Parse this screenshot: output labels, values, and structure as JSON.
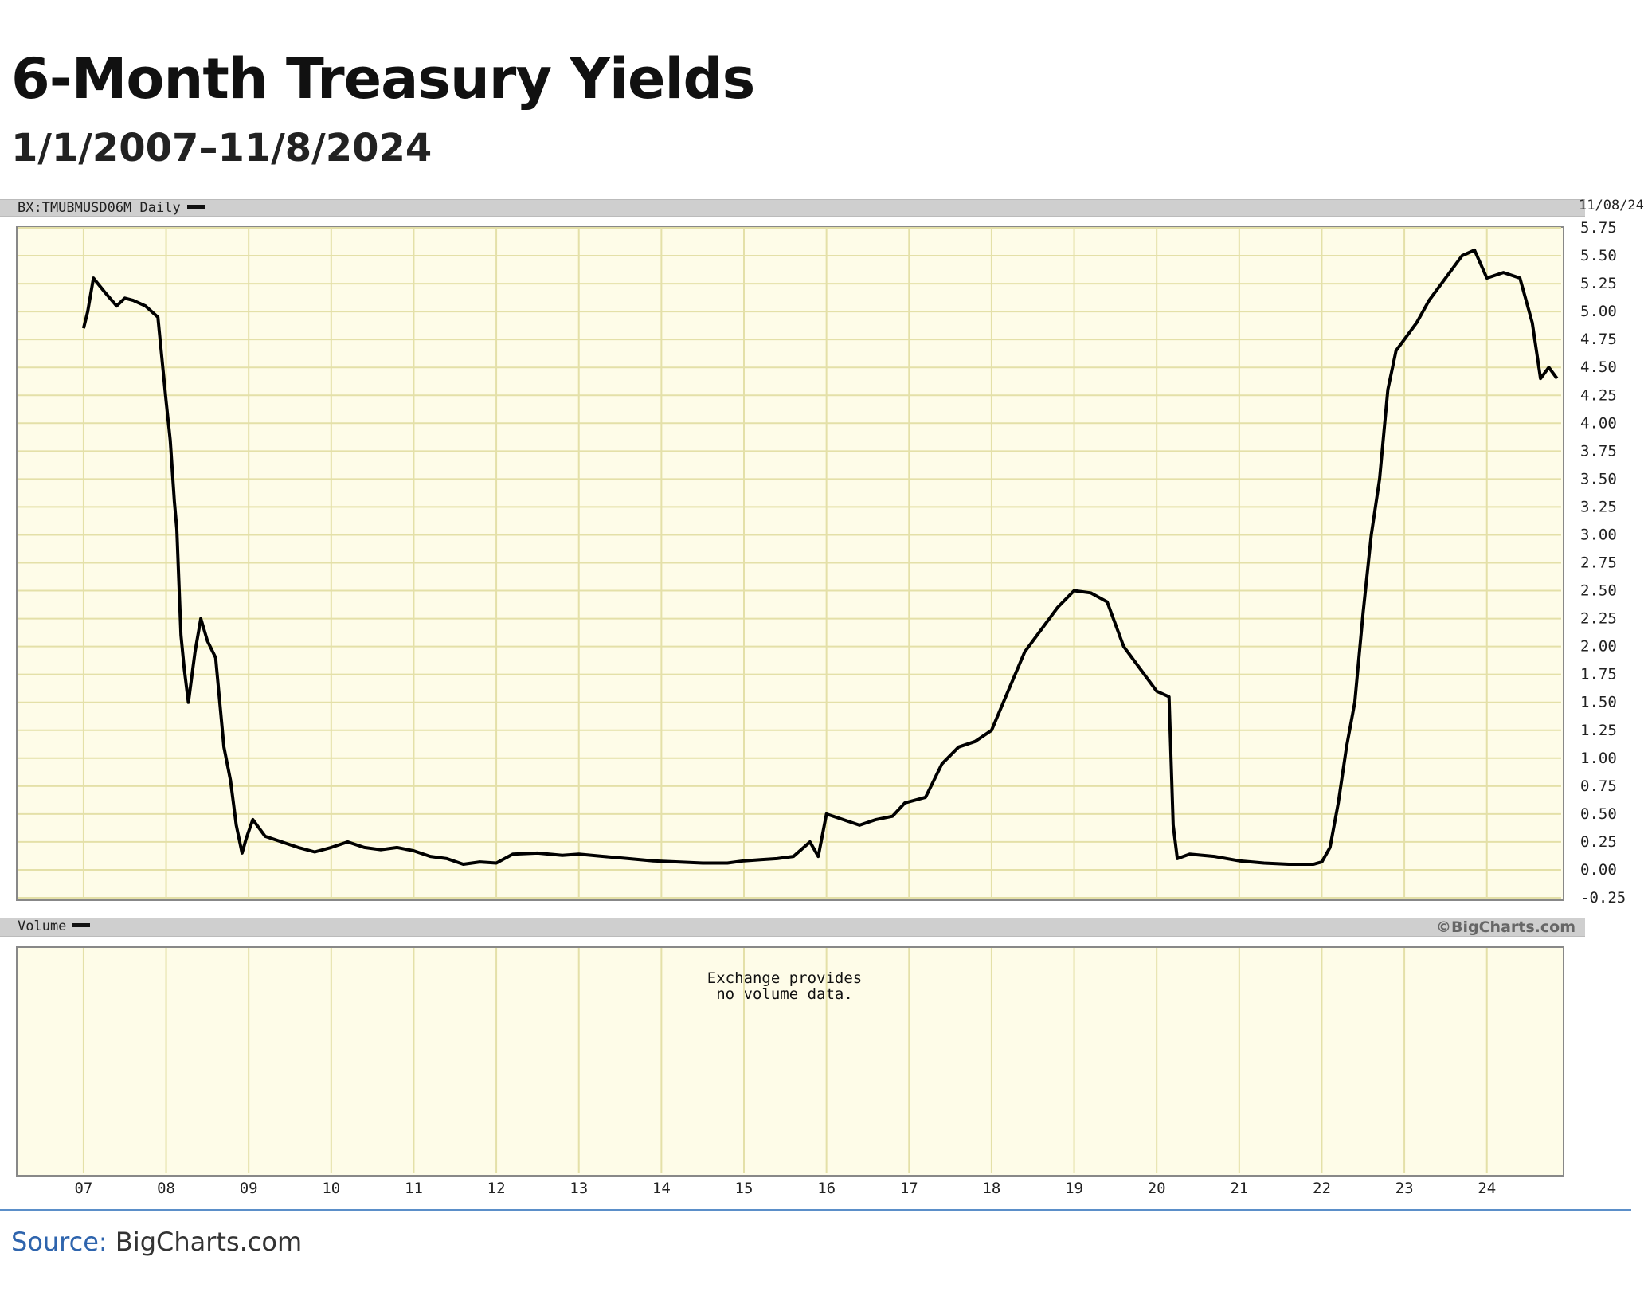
{
  "header": {
    "title": "6-Month Treasury Yields",
    "subtitle": "1/1/2007–11/8/2024"
  },
  "price_panel": {
    "label": "BX:TMUBMUSD06M Daily",
    "end_date": "11/08/24"
  },
  "volume_panel": {
    "label": "Volume",
    "brand": "©BigCharts.com",
    "message": "Exchange provides\nno volume data."
  },
  "footer": {
    "source_label": "Source:",
    "source_value": "BigCharts.com"
  },
  "chart_data": {
    "type": "line",
    "title": "6-Month Treasury Yields",
    "subtitle": "1/1/2007–11/8/2024",
    "series": [
      {
        "name": "BX:TMUBMUSD06M Daily",
        "x": [
          2007.0,
          2007.05,
          2007.12,
          2007.25,
          2007.4,
          2007.5,
          2007.6,
          2007.75,
          2007.9,
          2008.0,
          2008.05,
          2008.1,
          2008.13,
          2008.18,
          2008.22,
          2008.27,
          2008.35,
          2008.42,
          2008.5,
          2008.6,
          2008.7,
          2008.78,
          2008.85,
          2008.92,
          2008.97,
          2009.05,
          2009.2,
          2009.4,
          2009.6,
          2009.8,
          2010.0,
          2010.2,
          2010.4,
          2010.6,
          2010.8,
          2011.0,
          2011.2,
          2011.4,
          2011.6,
          2011.8,
          2012.0,
          2012.2,
          2012.5,
          2012.8,
          2013.0,
          2013.3,
          2013.6,
          2013.9,
          2014.2,
          2014.5,
          2014.8,
          2015.0,
          2015.2,
          2015.4,
          2015.6,
          2015.8,
          2015.9,
          2016.0,
          2016.2,
          2016.4,
          2016.6,
          2016.8,
          2016.95,
          2017.2,
          2017.4,
          2017.6,
          2017.8,
          2018.0,
          2018.2,
          2018.4,
          2018.6,
          2018.8,
          2019.0,
          2019.2,
          2019.4,
          2019.6,
          2019.8,
          2020.0,
          2020.15,
          2020.2,
          2020.25,
          2020.4,
          2020.7,
          2021.0,
          2021.3,
          2021.6,
          2021.9,
          2022.0,
          2022.1,
          2022.2,
          2022.3,
          2022.4,
          2022.5,
          2022.6,
          2022.7,
          2022.8,
          2022.9,
          2023.0,
          2023.15,
          2023.3,
          2023.5,
          2023.7,
          2023.85,
          2024.0,
          2024.2,
          2024.4,
          2024.55,
          2024.65,
          2024.75,
          2024.85
        ],
        "values": [
          4.85,
          5.0,
          5.3,
          5.18,
          5.05,
          5.12,
          5.1,
          5.05,
          4.95,
          4.2,
          3.85,
          3.3,
          3.05,
          2.1,
          1.8,
          1.5,
          1.95,
          2.25,
          2.05,
          1.9,
          1.1,
          0.8,
          0.4,
          0.15,
          0.28,
          0.45,
          0.3,
          0.25,
          0.2,
          0.16,
          0.2,
          0.25,
          0.2,
          0.18,
          0.2,
          0.17,
          0.12,
          0.1,
          0.05,
          0.07,
          0.06,
          0.14,
          0.15,
          0.13,
          0.14,
          0.12,
          0.1,
          0.08,
          0.07,
          0.06,
          0.06,
          0.08,
          0.09,
          0.1,
          0.12,
          0.25,
          0.12,
          0.5,
          0.45,
          0.4,
          0.45,
          0.48,
          0.6,
          0.65,
          0.95,
          1.1,
          1.15,
          1.25,
          1.6,
          1.95,
          2.15,
          2.35,
          2.5,
          2.48,
          2.4,
          2.0,
          1.8,
          1.6,
          1.55,
          0.4,
          0.1,
          0.14,
          0.12,
          0.08,
          0.06,
          0.05,
          0.05,
          0.07,
          0.2,
          0.6,
          1.1,
          1.5,
          2.3,
          3.0,
          3.5,
          4.3,
          4.65,
          4.75,
          4.9,
          5.1,
          5.3,
          5.5,
          5.55,
          5.3,
          5.35,
          5.3,
          4.9,
          4.4,
          4.5,
          4.4
        ]
      }
    ],
    "x_ticks": [
      "07",
      "08",
      "09",
      "10",
      "11",
      "12",
      "13",
      "14",
      "15",
      "16",
      "17",
      "18",
      "19",
      "20",
      "21",
      "22",
      "23",
      "24"
    ],
    "y_ticks": [
      "5.75",
      "5.50",
      "5.25",
      "5.00",
      "4.75",
      "4.50",
      "4.25",
      "4.00",
      "3.75",
      "3.50",
      "3.25",
      "3.00",
      "2.75",
      "2.50",
      "2.25",
      "2.00",
      "1.75",
      "1.50",
      "1.25",
      "1.00",
      "0.75",
      "0.50",
      "0.25",
      "0.00",
      "-0.25"
    ],
    "ylim": [
      -0.25,
      5.75
    ],
    "xlim": [
      2006.2,
      2024.9
    ],
    "grid": true,
    "xlabel": "",
    "ylabel": "",
    "colors": {
      "line": "#000000",
      "plot_bg": "#fefce8",
      "grid": "#e4e0a8"
    }
  }
}
